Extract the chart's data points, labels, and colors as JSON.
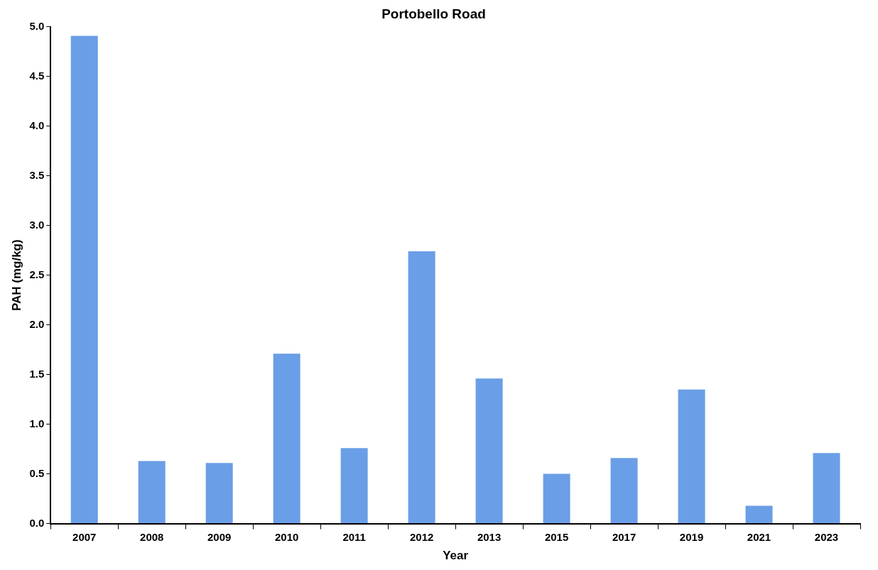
{
  "chart_data": {
    "type": "bar",
    "title": "Portobello Road",
    "xlabel": "Year",
    "ylabel": "PAH (mg/kg)",
    "categories": [
      "2007",
      "2008",
      "2009",
      "2010",
      "2011",
      "2012",
      "2013",
      "2015",
      "2017",
      "2019",
      "2021",
      "2023"
    ],
    "values": [
      4.91,
      0.63,
      0.61,
      1.71,
      0.76,
      2.74,
      1.46,
      0.5,
      0.66,
      1.35,
      0.18,
      0.71
    ],
    "color": "#6a9ee6",
    "ylim": [
      0,
      5
    ],
    "yticks": [
      {
        "value": 0,
        "label": "0.0"
      },
      {
        "value": 0.5,
        "label": "0.5"
      },
      {
        "value": 1,
        "label": "1.0"
      },
      {
        "value": 1.5,
        "label": "1.5"
      },
      {
        "value": 2,
        "label": "2.0"
      },
      {
        "value": 2.5,
        "label": "2.5"
      },
      {
        "value": 3,
        "label": "3.0"
      },
      {
        "value": 3.5,
        "label": "3.5"
      },
      {
        "value": 4,
        "label": "4.0"
      },
      {
        "value": 4.5,
        "label": "4.5"
      },
      {
        "value": 5,
        "label": "5.0"
      }
    ],
    "grid": false,
    "legend": false
  }
}
